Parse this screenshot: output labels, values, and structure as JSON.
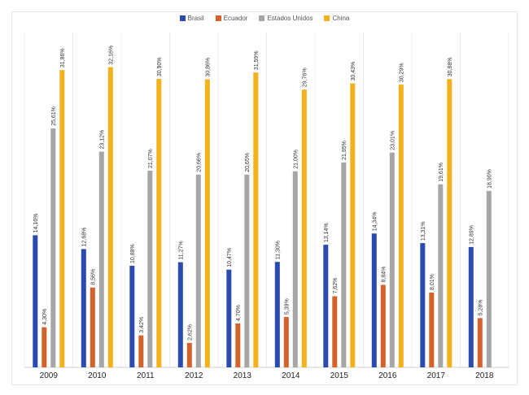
{
  "chart_data": {
    "type": "bar",
    "title": "",
    "xlabel": "",
    "ylabel": "",
    "ylim": [
      0,
      35
    ],
    "grid": false,
    "legend_position": "top",
    "categories": [
      "2009",
      "2010",
      "2011",
      "2012",
      "2013",
      "2014",
      "2015",
      "2016",
      "2017",
      "2018"
    ],
    "series": [
      {
        "name": "Brasil",
        "color": "#2b4bb0",
        "values": [
          14.16,
          12.68,
          10.88,
          11.27,
          10.47,
          11.3,
          13.14,
          14.34,
          13.31,
          12.89
        ],
        "labels": [
          "14,16%",
          "12,68%",
          "10,88%",
          "11,27%",
          "10,47%",
          "11,30%",
          "13,14%",
          "14,34%",
          "13,31%",
          "12,89%"
        ]
      },
      {
        "name": "Ecuador",
        "color": "#d4622a",
        "values": [
          4.3,
          8.56,
          3.42,
          2.62,
          4.7,
          5.39,
          7.62,
          8.84,
          8.01,
          5.28
        ],
        "labels": [
          "4,30%",
          "8,56%",
          "3,42%",
          "2,62%",
          "4,70%",
          "5,39%",
          "7,62%",
          "8,84%",
          "8,01%",
          "5,28%"
        ]
      },
      {
        "name": "Estados Unidos",
        "color": "#a6a6a6",
        "values": [
          25.61,
          23.12,
          21.07,
          20.66,
          20.65,
          21.0,
          21.95,
          23.01,
          19.61,
          18.9
        ],
        "labels": [
          "25,61%",
          "23,12%",
          "21,07%",
          "20,66%",
          "20,65%",
          "21,00%",
          "21,95%",
          "23,01%",
          "19,61%",
          "18,90%"
        ]
      },
      {
        "name": "China",
        "color": "#f4b11c",
        "values": [
          31.86,
          32.16,
          30.9,
          30.86,
          31.59,
          29.76,
          30.43,
          30.29,
          30.88,
          null
        ],
        "labels": [
          "31,86%",
          "32,16%",
          "30,90%",
          "30,86%",
          "31,59%",
          "29,76%",
          "30,43%",
          "30,29%",
          "30,88%",
          ""
        ]
      }
    ]
  }
}
